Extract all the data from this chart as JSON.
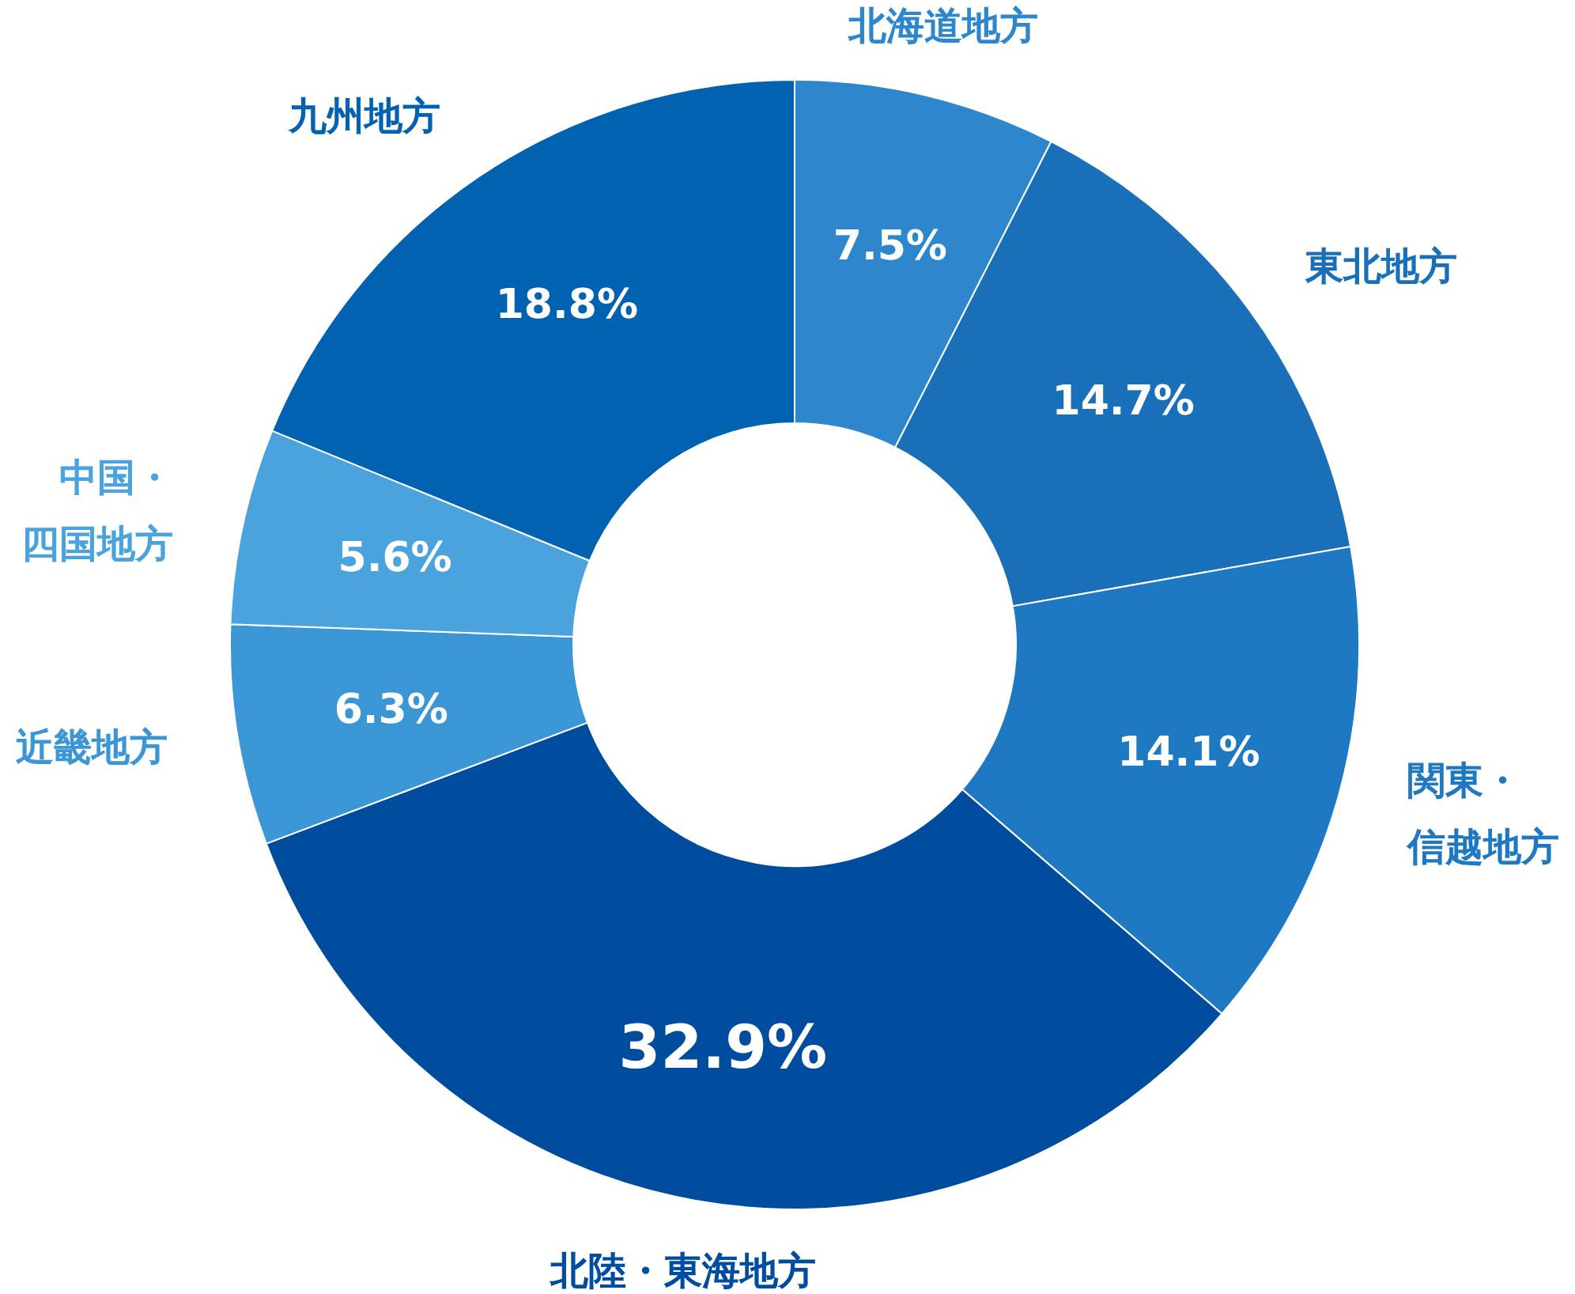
{
  "chart_data": {
    "type": "donut",
    "categories": [
      "北海道地方",
      "東北地方",
      "関東・信越地方",
      "北陸・東海地方",
      "近畿地方",
      "中国・四国地方",
      "九州地方"
    ],
    "values": [
      7.5,
      14.7,
      14.1,
      32.9,
      6.3,
      5.6,
      18.8
    ],
    "colors": [
      "#2e86cc",
      "#1a70b8",
      "#1f79c2",
      "#004c9f",
      "#3a96d4",
      "#4aa3dc",
      "#0062b0"
    ],
    "value_labels": [
      "7.5%",
      "14.7%",
      "14.1%",
      "32.9%",
      "6.3%",
      "5.6%",
      "18.8%"
    ]
  }
}
